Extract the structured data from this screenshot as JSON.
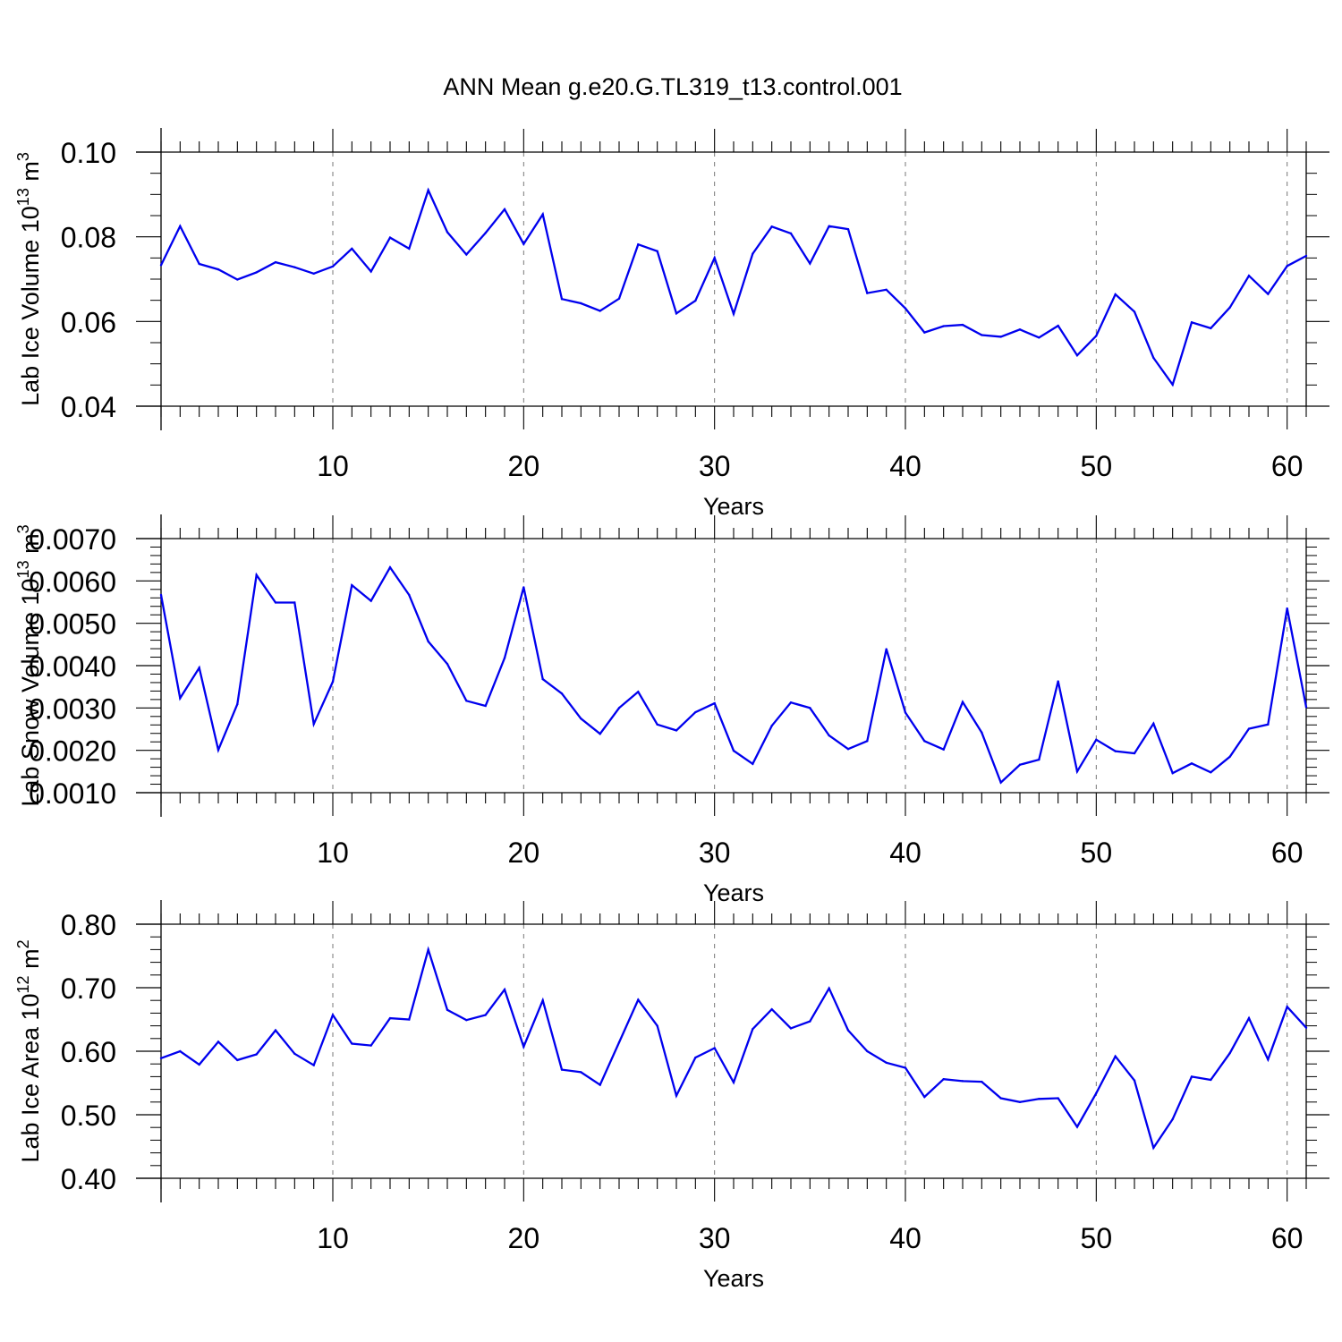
{
  "title": "ANN Mean g.e20.G.TL319_t13.control.001",
  "colors": {
    "line": "#0000ee",
    "axis": "#000000",
    "grid": "#777777"
  },
  "chart_data": [
    {
      "type": "line",
      "xlabel": "Years",
      "ylabel_text": "Lab Ice Volume 10",
      "ylabel_exp": "13",
      "ylabel_unit": " m",
      "ylabel_unit_exp": "3",
      "xlim": [
        1,
        61
      ],
      "ylim": [
        0.04,
        0.1
      ],
      "xticks": [
        10,
        20,
        30,
        40,
        50,
        60
      ],
      "xtick_labels": [
        "10",
        "20",
        "30",
        "40",
        "50",
        "60"
      ],
      "yticks": [
        0.04,
        0.06,
        0.08,
        0.1
      ],
      "ytick_labels": [
        "0.04",
        "0.06",
        "0.08",
        "0.10"
      ],
      "yminor_step": 0.005,
      "series": [
        {
          "name": "Lab Ice Volume",
          "x": [
            1,
            2,
            3,
            4,
            5,
            6,
            7,
            8,
            9,
            10,
            11,
            12,
            13,
            14,
            15,
            16,
            17,
            18,
            19,
            20,
            21,
            22,
            23,
            24,
            25,
            26,
            27,
            28,
            29,
            30,
            31,
            32,
            33,
            34,
            35,
            36,
            37,
            38,
            39,
            40,
            41,
            42,
            43,
            44,
            45,
            46,
            47,
            48,
            49,
            50,
            51,
            52,
            53,
            54,
            55,
            56,
            57,
            58,
            59,
            60,
            61
          ],
          "values": [
            0.0733,
            0.0825,
            0.0736,
            0.0723,
            0.0699,
            0.0716,
            0.074,
            0.0728,
            0.0713,
            0.073,
            0.0772,
            0.0718,
            0.0798,
            0.0772,
            0.091,
            0.0811,
            0.0758,
            0.0809,
            0.0865,
            0.0783,
            0.0853,
            0.0653,
            0.0643,
            0.0625,
            0.0654,
            0.0782,
            0.0766,
            0.0619,
            0.0649,
            0.075,
            0.0618,
            0.076,
            0.0824,
            0.0808,
            0.0737,
            0.0825,
            0.0818,
            0.0667,
            0.0675,
            0.0631,
            0.0574,
            0.0589,
            0.0592,
            0.0568,
            0.0564,
            0.0581,
            0.0562,
            0.059,
            0.052,
            0.0566,
            0.0664,
            0.0623,
            0.0514,
            0.0451,
            0.0598,
            0.0584,
            0.0633,
            0.0708,
            0.0665,
            0.0731,
            0.0755
          ]
        }
      ]
    },
    {
      "type": "line",
      "xlabel": "Years",
      "ylabel_text": "Lab Snow Volume 10",
      "ylabel_exp": "13",
      "ylabel_unit": " m",
      "ylabel_unit_exp": "3",
      "xlim": [
        1,
        61
      ],
      "ylim": [
        0.001,
        0.007
      ],
      "xticks": [
        10,
        20,
        30,
        40,
        50,
        60
      ],
      "xtick_labels": [
        "10",
        "20",
        "30",
        "40",
        "50",
        "60"
      ],
      "yticks": [
        0.001,
        0.002,
        0.003,
        0.004,
        0.005,
        0.006,
        0.007
      ],
      "ytick_labels": [
        "0.0010",
        "0.0020",
        "0.0030",
        "0.0040",
        "0.0050",
        "0.0060",
        "0.0070"
      ],
      "yminor_step": 0.0002,
      "series": [
        {
          "name": "Lab Snow Volume",
          "x": [
            1,
            2,
            3,
            4,
            5,
            6,
            7,
            8,
            9,
            10,
            11,
            12,
            13,
            14,
            15,
            16,
            17,
            18,
            19,
            20,
            21,
            22,
            23,
            24,
            25,
            26,
            27,
            28,
            29,
            30,
            31,
            32,
            33,
            34,
            35,
            36,
            37,
            38,
            39,
            40,
            41,
            42,
            43,
            44,
            45,
            46,
            47,
            48,
            49,
            50,
            51,
            52,
            53,
            54,
            55,
            56,
            57,
            58,
            59,
            60,
            61
          ],
          "values": [
            0.00567,
            0.00323,
            0.00395,
            0.00201,
            0.00309,
            0.00614,
            0.00549,
            0.00549,
            0.00262,
            0.00362,
            0.0059,
            0.00553,
            0.00632,
            0.00567,
            0.00457,
            0.00404,
            0.00317,
            0.00305,
            0.00418,
            0.00585,
            0.00368,
            0.00334,
            0.00275,
            0.00239,
            0.003,
            0.00338,
            0.00261,
            0.00247,
            0.0029,
            0.00311,
            0.00199,
            0.00168,
            0.00258,
            0.00313,
            0.003,
            0.00235,
            0.00203,
            0.00222,
            0.00439,
            0.00289,
            0.00222,
            0.00202,
            0.00314,
            0.00242,
            0.00124,
            0.00166,
            0.00178,
            0.00363,
            0.0015,
            0.00225,
            0.00198,
            0.00193,
            0.00263,
            0.00146,
            0.00169,
            0.00148,
            0.00185,
            0.00251,
            0.00261,
            0.00535,
            0.00302
          ]
        }
      ]
    },
    {
      "type": "line",
      "xlabel": "Years",
      "ylabel_text": "Lab Ice Area 10",
      "ylabel_exp": "12",
      "ylabel_unit": " m",
      "ylabel_unit_exp": "2",
      "xlim": [
        1,
        61
      ],
      "ylim": [
        0.4,
        0.8
      ],
      "xticks": [
        10,
        20,
        30,
        40,
        50,
        60
      ],
      "xtick_labels": [
        "10",
        "20",
        "30",
        "40",
        "50",
        "60"
      ],
      "yticks": [
        0.4,
        0.5,
        0.6,
        0.7,
        0.8
      ],
      "ytick_labels": [
        "0.40",
        "0.50",
        "0.60",
        "0.70",
        "0.80"
      ],
      "yminor_step": 0.02,
      "series": [
        {
          "name": "Lab Ice Area",
          "x": [
            1,
            2,
            3,
            4,
            5,
            6,
            7,
            8,
            9,
            10,
            11,
            12,
            13,
            14,
            15,
            16,
            17,
            18,
            19,
            20,
            21,
            22,
            23,
            24,
            25,
            26,
            27,
            28,
            29,
            30,
            31,
            32,
            33,
            34,
            35,
            36,
            37,
            38,
            39,
            40,
            41,
            42,
            43,
            44,
            45,
            46,
            47,
            48,
            49,
            50,
            51,
            52,
            53,
            54,
            55,
            56,
            57,
            58,
            59,
            60,
            61
          ],
          "values": [
            0.589,
            0.6,
            0.579,
            0.615,
            0.586,
            0.595,
            0.633,
            0.596,
            0.578,
            0.657,
            0.612,
            0.609,
            0.652,
            0.65,
            0.76,
            0.665,
            0.649,
            0.657,
            0.697,
            0.607,
            0.68,
            0.571,
            0.567,
            0.547,
            0.614,
            0.681,
            0.64,
            0.53,
            0.59,
            0.605,
            0.551,
            0.635,
            0.666,
            0.636,
            0.647,
            0.699,
            0.633,
            0.6,
            0.582,
            0.574,
            0.528,
            0.556,
            0.553,
            0.552,
            0.526,
            0.52,
            0.525,
            0.526,
            0.481,
            0.534,
            0.592,
            0.554,
            0.448,
            0.493,
            0.56,
            0.555,
            0.597,
            0.652,
            0.587,
            0.67,
            0.637
          ]
        }
      ]
    }
  ]
}
